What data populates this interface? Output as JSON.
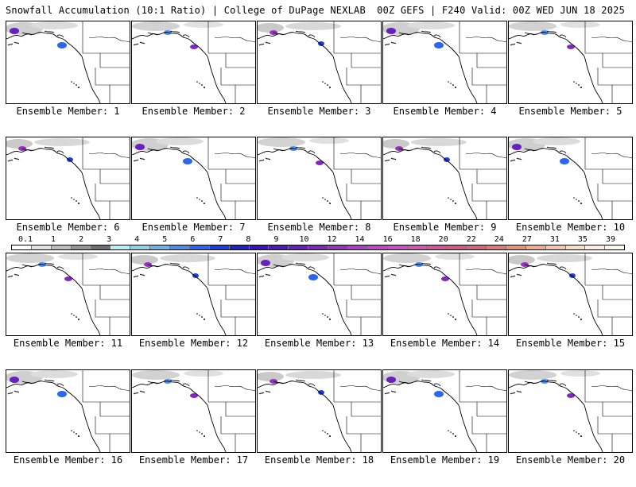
{
  "header": {
    "title_left": "Snowfall Accumulation (10:1 Ratio) | College of DuPage NEXLAB",
    "title_right": "00Z GEFS | F240 Valid: 00Z WED JUN 18 2025"
  },
  "panels": [
    {
      "label": "Ensemble Member: 1"
    },
    {
      "label": "Ensemble Member: 2"
    },
    {
      "label": "Ensemble Member: 3"
    },
    {
      "label": "Ensemble Member: 4"
    },
    {
      "label": "Ensemble Member: 5"
    },
    {
      "label": "Ensemble Member: 6"
    },
    {
      "label": "Ensemble Member: 7"
    },
    {
      "label": "Ensemble Member: 8"
    },
    {
      "label": "Ensemble Member: 9"
    },
    {
      "label": "Ensemble Member: 10"
    },
    {
      "label": "Ensemble Member: 11"
    },
    {
      "label": "Ensemble Member: 12"
    },
    {
      "label": "Ensemble Member: 13"
    },
    {
      "label": "Ensemble Member: 14"
    },
    {
      "label": "Ensemble Member: 15"
    },
    {
      "label": "Ensemble Member: 16"
    },
    {
      "label": "Ensemble Member: 17"
    },
    {
      "label": "Ensemble Member: 18"
    },
    {
      "label": "Ensemble Member: 19"
    },
    {
      "label": "Ensemble Member: 20"
    }
  ],
  "legend": {
    "labels": [
      "0.1",
      "1",
      "2",
      "3",
      "4",
      "5",
      "6",
      "7",
      "8",
      "9",
      "10",
      "12",
      "14",
      "16",
      "18",
      "20",
      "22",
      "24",
      "27",
      "31",
      "35",
      "39"
    ],
    "colors": [
      "#ffffff",
      "#e2e2e2",
      "#bdbdbd",
      "#959595",
      "#6f6f6f",
      "#b8f0f5",
      "#8ed6ef",
      "#6fb4ef",
      "#4a8ef0",
      "#2a66f0",
      "#1d3ee6",
      "#1e22c8",
      "#3a14c4",
      "#5218c4",
      "#6a1fc2",
      "#8226c2",
      "#9a30c4",
      "#b03cc8",
      "#c444cc",
      "#d24cc6",
      "#d654b4",
      "#d6569c",
      "#d65886",
      "#d8657a",
      "#e07a72",
      "#e89278",
      "#f0ac8c",
      "#f6c6a6",
      "#fadec6",
      "#fdf0e0",
      "#fff8ee"
    ]
  },
  "colors": {
    "background": "#ffffff",
    "coastline": "#000000",
    "snow_light": "#bdbdbd",
    "snow_heavy": "#5218c4"
  }
}
